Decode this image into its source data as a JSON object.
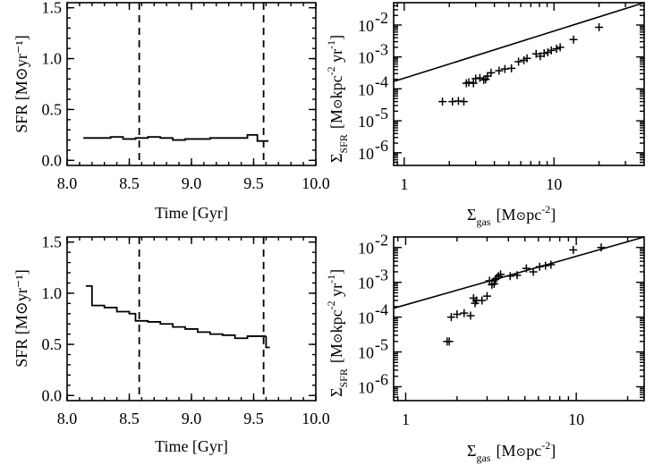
{
  "chart_data": [
    {
      "id": "sfr_top",
      "type": "line",
      "xlabel": "Time [Gyr]",
      "ylabel": "SFR [M⊙yr⁻¹]",
      "xlim": [
        8.0,
        10.0
      ],
      "ylim": [
        -0.05,
        1.55
      ],
      "xticks": [
        "8.0",
        "8.5",
        "9.0",
        "9.5",
        "10.0"
      ],
      "xtick_values": [
        8.0,
        8.5,
        9.0,
        9.5,
        10.0
      ],
      "yticks": [
        "0.0",
        "0.5",
        "1.0",
        "1.5"
      ],
      "ytick_values": [
        0.0,
        0.5,
        1.0,
        1.5
      ],
      "vlines": [
        8.58,
        9.58
      ],
      "step_edges": [
        8.13,
        8.25,
        8.35,
        8.45,
        8.55,
        8.65,
        8.75,
        8.85,
        8.95,
        9.05,
        9.15,
        9.25,
        9.35,
        9.45,
        9.53,
        9.62
      ],
      "step_values": [
        0.22,
        0.22,
        0.23,
        0.21,
        0.22,
        0.23,
        0.22,
        0.2,
        0.21,
        0.21,
        0.22,
        0.22,
        0.22,
        0.25,
        0.19
      ]
    },
    {
      "id": "ks_top",
      "type": "scatter",
      "xlabel": "Σgas [M⊙pc⁻²]",
      "ylabel": "ΣSFR [M⊙kpc⁻² yr⁻¹]",
      "xscale": "log",
      "yscale": "log",
      "xlim": [
        0.85,
        40
      ],
      "ylim": [
        4e-07,
        0.05
      ],
      "xticks": [
        "1",
        "10"
      ],
      "xtick_values": [
        1,
        10
      ],
      "yticks": [
        "10",
        "10",
        "10",
        "10",
        "10"
      ],
      "yticks_exp": [
        "-6",
        "-5",
        "-4",
        "-3",
        "-2"
      ],
      "ytick_values": [
        1e-06,
        1e-05,
        0.0001,
        0.001,
        0.01
      ],
      "fit": {
        "x": [
          0.85,
          40
        ],
        "y": [
          0.00017,
          0.05
        ]
      },
      "points": {
        "x": [
          1.8,
          2.1,
          2.3,
          2.5,
          2.6,
          2.7,
          2.9,
          3.0,
          3.2,
          3.4,
          3.5,
          3.6,
          3.8,
          4.3,
          4.7,
          5.2,
          5.8,
          6.3,
          6.6,
          7.6,
          8.1,
          8.6,
          9.1,
          9.6,
          10.4,
          11.0,
          13.5,
          20.0
        ],
        "y": [
          4e-05,
          4e-05,
          4.2e-05,
          4e-05,
          0.00015,
          0.00016,
          0.00015,
          0.00021,
          0.00022,
          0.00019,
          0.0002,
          0.00025,
          0.00032,
          0.00037,
          0.00042,
          0.00044,
          0.00071,
          0.00079,
          0.0009,
          0.00125,
          0.00105,
          0.0013,
          0.0014,
          0.0016,
          0.0018,
          0.002,
          0.0035,
          0.0085
        ]
      }
    },
    {
      "id": "sfr_bottom",
      "type": "line",
      "xlabel": "Time [Gyr]",
      "ylabel": "SFR [M⊙yr⁻¹]",
      "xlim": [
        8.0,
        10.0
      ],
      "ylim": [
        -0.05,
        1.55
      ],
      "xticks": [
        "8.0",
        "8.5",
        "9.0",
        "9.5",
        "10.0"
      ],
      "xtick_values": [
        8.0,
        8.5,
        9.0,
        9.5,
        10.0
      ],
      "yticks": [
        "0.0",
        "0.5",
        "1.0",
        "1.5"
      ],
      "ytick_values": [
        0.0,
        0.5,
        1.0,
        1.5
      ],
      "vlines": [
        8.58,
        9.58
      ],
      "step_edges": [
        8.15,
        8.2,
        8.3,
        8.4,
        8.5,
        8.55,
        8.65,
        8.75,
        8.85,
        8.95,
        9.05,
        9.15,
        9.25,
        9.35,
        9.45,
        9.6
      ],
      "step_values": [
        1.07,
        0.88,
        0.86,
        0.82,
        0.8,
        0.73,
        0.72,
        0.7,
        0.67,
        0.65,
        0.62,
        0.6,
        0.59,
        0.56,
        0.58
      ],
      "tail": {
        "x": [
          9.6,
          9.63
        ],
        "y": [
          0.47,
          0.47
        ]
      }
    },
    {
      "id": "ks_bottom",
      "type": "scatter",
      "xlabel": "Σgas [M⊙pc⁻²]",
      "ylabel": "ΣSFR [M⊙kpc⁻² yr⁻¹]",
      "xscale": "log",
      "yscale": "log",
      "xlim": [
        0.85,
        25
      ],
      "ylim": [
        4e-07,
        0.02
      ],
      "xticks": [
        "1",
        "10"
      ],
      "xtick_values": [
        1,
        10
      ],
      "yticks": [
        "10",
        "10",
        "10",
        "10",
        "10"
      ],
      "yticks_exp": [
        "-6",
        "-5",
        "-4",
        "-3",
        "-2"
      ],
      "ytick_values": [
        1e-06,
        1e-05,
        0.0001,
        0.001,
        0.01
      ],
      "fit": {
        "x": [
          0.85,
          25
        ],
        "y": [
          0.00018,
          0.02
        ]
      },
      "points": {
        "x": [
          1.75,
          1.8,
          1.85,
          2.0,
          2.2,
          2.4,
          2.5,
          2.55,
          2.6,
          2.8,
          3.0,
          3.1,
          3.2,
          3.3,
          3.35,
          3.4,
          3.5,
          3.6,
          4.1,
          4.5,
          5.1,
          5.6,
          6.1,
          6.6,
          7.1,
          9.6,
          14.0
        ],
        "y": [
          2e-05,
          2e-05,
          0.0001,
          0.00012,
          0.00013,
          0.00011,
          0.00035,
          0.00025,
          0.0003,
          0.0003,
          0.0004,
          0.0011,
          0.00085,
          0.0009,
          0.0012,
          0.0013,
          0.0015,
          0.0017,
          0.0015,
          0.0016,
          0.0025,
          0.002,
          0.0028,
          0.003,
          0.0032,
          0.0085,
          0.01
        ]
      }
    }
  ]
}
